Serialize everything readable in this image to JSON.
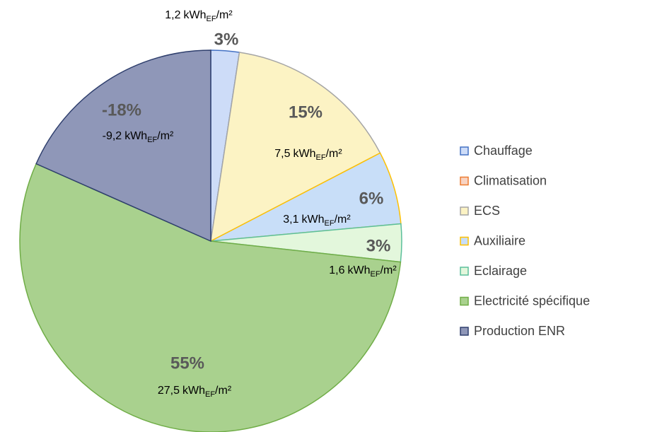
{
  "chart_data": {
    "type": "pie",
    "categories": [
      "Chauffage",
      "Climatisation",
      "ECS",
      "Auxiliaire",
      "Eclairage",
      "Electricité spécifique",
      "Production ENR"
    ],
    "values": [
      1.2,
      0,
      7.5,
      3.1,
      1.6,
      27.5,
      -9.2
    ],
    "value_labels": [
      "1,2",
      null,
      "7,5",
      "3,1",
      "1,6",
      "27,5",
      "-9,2"
    ],
    "unit": {
      "main": "kWh",
      "sub": "EF",
      "tail": "/m²"
    },
    "percents": [
      3,
      0,
      15,
      6,
      3,
      55,
      -18
    ],
    "percent_labels": [
      "3%",
      null,
      "15%",
      "6%",
      "3%",
      "55%",
      "-18%"
    ],
    "colors": [
      "#cddcf8",
      "#f8d3c2",
      "#fcf3c4",
      "#c8def8",
      "#e3f7dc",
      "#a9d18e",
      "#8f97b8"
    ],
    "edge_colors": [
      "#4472c4",
      "#ed7d31",
      "#a5a5a5",
      "#ffc000",
      "#5bbf9b",
      "#70ad47",
      "#2f3f6d"
    ],
    "legend": "right"
  }
}
